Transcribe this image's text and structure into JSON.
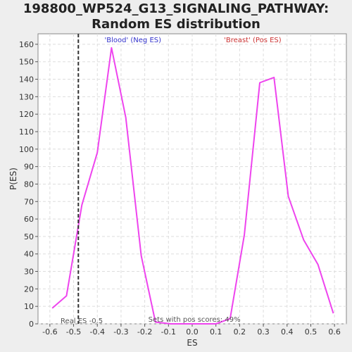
{
  "chart_data": {
    "type": "line",
    "title": "198800_WP524_G13_SIGNALING_PATHWAY: Random ES distribution",
    "xlabel": "ES",
    "ylabel": "P(ES)",
    "xlim": [
      -0.65,
      0.65
    ],
    "ylim": [
      0,
      166
    ],
    "xticks": [
      -0.6,
      -0.5,
      -0.4,
      -0.3,
      -0.2,
      -0.1,
      0.0,
      0.1,
      0.2,
      0.3,
      0.4,
      0.5,
      0.6
    ],
    "xtick_labels": [
      "-0.6",
      "-0.5",
      "-0.4",
      "-0.3",
      "-0.2",
      "-0.1",
      "0.0",
      "0.1",
      "0.2",
      "0.3",
      "0.4",
      "0.5",
      "0.6"
    ],
    "yticks": [
      0,
      10,
      20,
      30,
      40,
      50,
      60,
      70,
      80,
      90,
      100,
      110,
      120,
      130,
      140,
      150,
      160
    ],
    "ytick_labels": [
      "0",
      "10",
      "20",
      "30",
      "40",
      "50",
      "60",
      "70",
      "80",
      "90",
      "100",
      "110",
      "120",
      "130",
      "140",
      "150",
      "160"
    ],
    "grid": true,
    "series": [
      {
        "color": "#ee44ee",
        "x": [
          -0.59,
          -0.53,
          -0.465,
          -0.4,
          -0.34,
          -0.28,
          -0.215,
          -0.155,
          -0.09,
          0.1,
          0.16,
          0.22,
          0.285,
          0.345,
          0.405,
          0.47,
          0.53,
          0.595
        ],
        "y": [
          9,
          16,
          68,
          98,
          158,
          118,
          39,
          1,
          0,
          0,
          3,
          51,
          138,
          141,
          73,
          48,
          34,
          6
        ]
      }
    ],
    "real_es": -0.48,
    "annotations": {
      "neg_label": "'Blood' (Neg ES)",
      "pos_label": "'Breast' (Pos ES)",
      "real_es_label": "Real ES -0.5",
      "sets_label": "Sets with pos scores: 49%"
    },
    "colors": {
      "line": "#ee44ee",
      "neg_label": "#3333cc",
      "pos_label": "#cc3333",
      "real_es_line": "#333333",
      "grid": "#dddddd",
      "plot_bg": "#ffffff",
      "page_bg": "#eeeeee"
    }
  }
}
